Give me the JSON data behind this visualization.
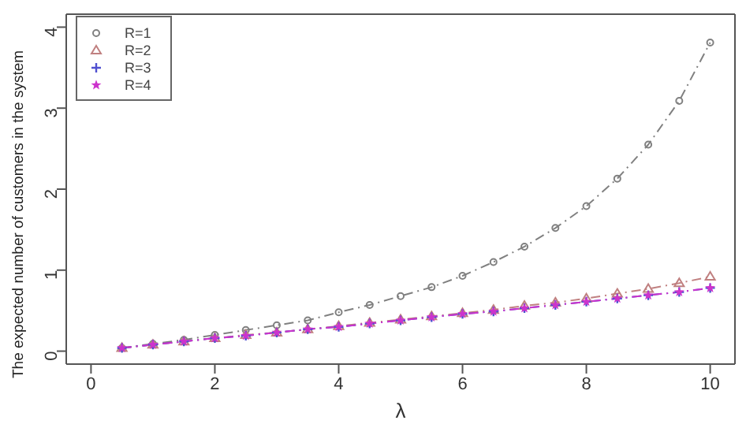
{
  "chart_data": {
    "type": "line",
    "xlabel": "λ",
    "ylabel": "The expected number of customers in the system",
    "x": [
      0.5,
      1,
      1.5,
      2,
      2.5,
      3,
      3.5,
      4,
      4.5,
      5,
      5.5,
      6,
      6.5,
      7,
      7.5,
      8,
      8.5,
      9,
      9.5,
      10
    ],
    "xlim": [
      -0.4,
      10.4
    ],
    "xticks": [
      0,
      2,
      4,
      6,
      8,
      10
    ],
    "ylim": [
      -0.16,
      4.16
    ],
    "yticks": [
      0,
      1,
      2,
      3,
      4
    ],
    "grid": false,
    "legend": "top left",
    "line_style": "dashed",
    "series": [
      {
        "name": "R=1",
        "color": "#808080",
        "marker": "circle",
        "values": [
          0.04,
          0.09,
          0.14,
          0.2,
          0.26,
          0.32,
          0.38,
          0.48,
          0.57,
          0.68,
          0.79,
          0.93,
          1.1,
          1.29,
          1.52,
          1.79,
          2.13,
          2.55,
          3.09,
          3.81
        ]
      },
      {
        "name": "R=2",
        "color": "#c08080",
        "marker": "triangle",
        "values": [
          0.04,
          0.08,
          0.12,
          0.16,
          0.2,
          0.23,
          0.27,
          0.31,
          0.35,
          0.39,
          0.43,
          0.47,
          0.51,
          0.56,
          0.6,
          0.65,
          0.71,
          0.77,
          0.84,
          0.92
        ]
      },
      {
        "name": "R=3",
        "color": "#5050d0",
        "marker": "cross",
        "values": [
          0.04,
          0.08,
          0.12,
          0.16,
          0.19,
          0.23,
          0.27,
          0.3,
          0.34,
          0.38,
          0.42,
          0.46,
          0.49,
          0.53,
          0.57,
          0.61,
          0.65,
          0.69,
          0.73,
          0.78
        ]
      },
      {
        "name": "R=4",
        "color": "#cc33cc",
        "marker": "star",
        "values": [
          0.04,
          0.08,
          0.12,
          0.16,
          0.19,
          0.23,
          0.27,
          0.3,
          0.34,
          0.38,
          0.42,
          0.46,
          0.49,
          0.53,
          0.57,
          0.61,
          0.65,
          0.69,
          0.73,
          0.78
        ]
      }
    ]
  }
}
